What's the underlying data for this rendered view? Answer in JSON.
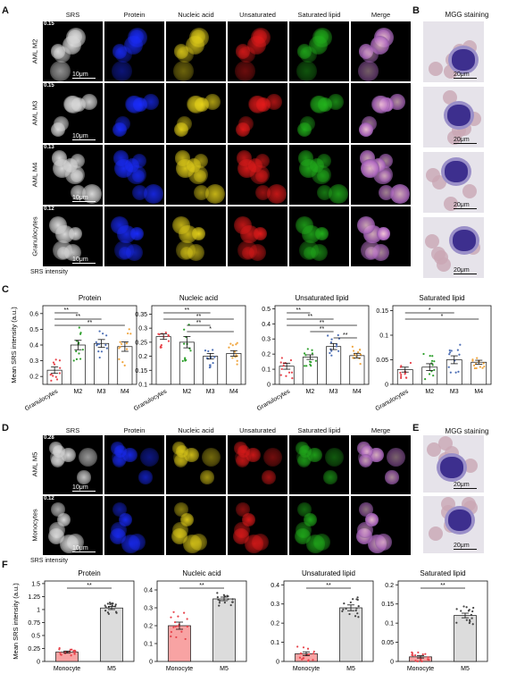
{
  "panels": {
    "A": {
      "label": "A",
      "columns": [
        "SRS",
        "Protein",
        "Nucleic acid",
        "Unsaturated",
        "Saturated lipid",
        "Merge"
      ],
      "rows": [
        "AML M2",
        "AML M3",
        "AML M4",
        "Granulocytes"
      ],
      "colorbar_values": [
        "0.15",
        "0.15",
        "0.13",
        "0.12"
      ],
      "scale": "10μm",
      "footer": "SRS intensity"
    },
    "B": {
      "label": "B",
      "title": "MGG staining",
      "scale": "20μm"
    },
    "C": {
      "label": "C"
    },
    "D": {
      "label": "D",
      "columns": [
        "SRS",
        "Protein",
        "Nucleic acid",
        "Unsaturated",
        "Saturated lipid",
        "Merge"
      ],
      "rows": [
        "AML M5",
        "Monocytes"
      ],
      "colorbar_values": [
        "0.28",
        "0.12"
      ],
      "scale": "10μm",
      "footer": "SRS intensity"
    },
    "E": {
      "label": "E",
      "title": "MGG staining",
      "scale": "20μm"
    },
    "F": {
      "label": "F"
    }
  },
  "colors": {
    "protein": "#1a2cff",
    "nucleic": "#e6d21a",
    "unsat": "#e41b1b",
    "sat": "#22b21c",
    "srs": "#d8d8d8",
    "bar_red": "#f8a3a3",
    "bar_gray": "#dcdcdc",
    "dot_red": "#e8444c"
  },
  "chart_data": [
    {
      "type": "bar",
      "title": "Protein",
      "ylabel": "Mean SRS intensity (a.u.)",
      "categories": [
        "Granulocytes",
        "M2",
        "M3",
        "M4"
      ],
      "values": [
        0.24,
        0.4,
        0.41,
        0.39
      ],
      "errors": [
        0.02,
        0.03,
        0.025,
        0.03
      ],
      "ylim": [
        0.15,
        0.65
      ],
      "yticks": [
        0.2,
        0.3,
        0.4,
        0.5,
        0.6
      ],
      "dot_colors": [
        "#e8444c",
        "#2ea02c",
        "#4d6fb5",
        "#f0a640"
      ],
      "significance": [
        {
          "from": 0,
          "to": 1,
          "label": "**"
        },
        {
          "from": 0,
          "to": 2,
          "label": "**"
        },
        {
          "from": 0,
          "to": 3,
          "label": "**"
        }
      ]
    },
    {
      "type": "bar",
      "title": "Nucleic acid",
      "categories": [
        "Granulocytes",
        "M2",
        "M3",
        "M4"
      ],
      "values": [
        0.27,
        0.25,
        0.2,
        0.21
      ],
      "errors": [
        0.01,
        0.02,
        0.01,
        0.01
      ],
      "ylim": [
        0.1,
        0.38
      ],
      "yticks": [
        0.1,
        0.15,
        0.2,
        0.25,
        0.3,
        0.35
      ],
      "dot_colors": [
        "#e8444c",
        "#2ea02c",
        "#4d6fb5",
        "#f0a640"
      ],
      "significance": [
        {
          "from": 0,
          "to": 2,
          "label": "**"
        },
        {
          "from": 0,
          "to": 3,
          "label": "**"
        },
        {
          "from": 1,
          "to": 2,
          "label": "**"
        },
        {
          "from": 1,
          "to": 3,
          "label": "*"
        }
      ]
    },
    {
      "type": "bar",
      "title": "Unsaturated lipid",
      "categories": [
        "Granulocytes",
        "M2",
        "M3",
        "M4"
      ],
      "values": [
        0.12,
        0.18,
        0.25,
        0.19
      ],
      "errors": [
        0.02,
        0.015,
        0.02,
        0.015
      ],
      "ylim": [
        0.0,
        0.52
      ],
      "yticks": [
        0.0,
        0.1,
        0.2,
        0.3,
        0.4,
        0.5
      ],
      "dot_colors": [
        "#e8444c",
        "#2ea02c",
        "#4d6fb5",
        "#f0a640"
      ],
      "significance": [
        {
          "from": 0,
          "to": 1,
          "label": "**"
        },
        {
          "from": 0,
          "to": 2,
          "label": "**"
        },
        {
          "from": 0,
          "to": 3,
          "label": "**"
        },
        {
          "from": 1,
          "to": 2,
          "label": "**"
        },
        {
          "from": 2,
          "to": 3,
          "label": "**"
        }
      ]
    },
    {
      "type": "bar",
      "title": "Saturated lipid",
      "categories": [
        "Granulocytes",
        "M2",
        "M3",
        "M4"
      ],
      "values": [
        0.03,
        0.035,
        0.05,
        0.045
      ],
      "errors": [
        0.005,
        0.007,
        0.008,
        0.004
      ],
      "ylim": [
        0.0,
        0.16
      ],
      "yticks": [
        0.0,
        0.05,
        0.1,
        0.15
      ],
      "dot_colors": [
        "#e8444c",
        "#2ea02c",
        "#4d6fb5",
        "#f0a640"
      ],
      "significance": [
        {
          "from": 0,
          "to": 2,
          "label": "*"
        },
        {
          "from": 0,
          "to": 3,
          "label": "*"
        }
      ]
    },
    {
      "type": "bar",
      "title": "Protein",
      "ylabel": "Mean SRS intensity (a.u.)",
      "categories": [
        "Monocyte",
        "M5"
      ],
      "values": [
        0.18,
        1.03
      ],
      "errors": [
        0.02,
        0.03
      ],
      "ylim": [
        0,
        1.55
      ],
      "yticks": [
        0.0,
        0.25,
        0.5,
        0.75,
        1.0,
        1.25,
        1.5
      ],
      "significance": [
        {
          "from": 0,
          "to": 1,
          "label": "**"
        }
      ]
    },
    {
      "type": "bar",
      "title": "Nucleic acid",
      "categories": [
        "Monocyte",
        "M5"
      ],
      "values": [
        0.2,
        0.35
      ],
      "errors": [
        0.02,
        0.01
      ],
      "ylim": [
        0,
        0.45
      ],
      "yticks": [
        0.0,
        0.1,
        0.2,
        0.3,
        0.4
      ],
      "significance": [
        {
          "from": 0,
          "to": 1,
          "label": "**"
        }
      ]
    },
    {
      "type": "bar",
      "title": "Unsaturated lipid",
      "categories": [
        "Monocyte",
        "M5"
      ],
      "values": [
        0.04,
        0.28
      ],
      "errors": [
        0.01,
        0.015
      ],
      "ylim": [
        0,
        0.42
      ],
      "yticks": [
        0.0,
        0.1,
        0.2,
        0.3,
        0.4
      ],
      "significance": [
        {
          "from": 0,
          "to": 1,
          "label": "**"
        }
      ]
    },
    {
      "type": "bar",
      "title": "Saturated lipid",
      "categories": [
        "Monocyte",
        "M5"
      ],
      "values": [
        0.012,
        0.12
      ],
      "errors": [
        0.003,
        0.006
      ],
      "ylim": [
        0,
        0.21
      ],
      "yticks": [
        0.0,
        0.05,
        0.1,
        0.15,
        0.2
      ],
      "significance": [
        {
          "from": 0,
          "to": 1,
          "label": "**"
        }
      ]
    }
  ]
}
